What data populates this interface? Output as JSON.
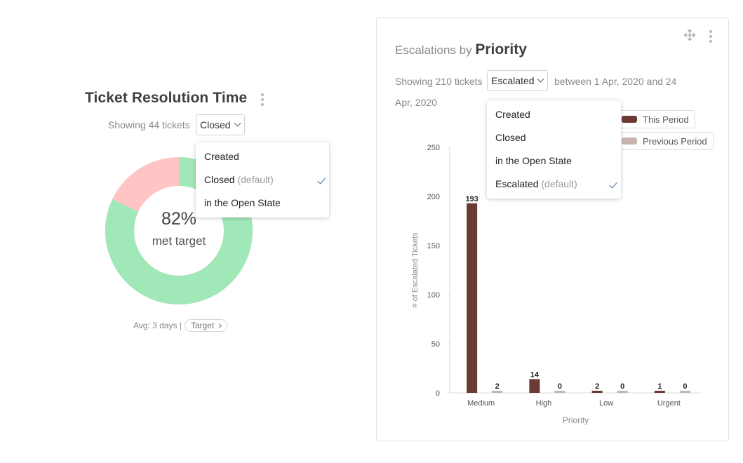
{
  "left": {
    "title": "Ticket Resolution Time",
    "showing": "Showing 44 tickets",
    "select_value": "Closed",
    "dropdown": [
      {
        "label": "Created",
        "default_tag": "",
        "selected": false
      },
      {
        "label": "Closed",
        "default_tag": "(default)",
        "selected": true
      },
      {
        "label": "in the Open State",
        "default_tag": "",
        "selected": false
      }
    ],
    "donut": {
      "percent_label": "82%",
      "caption": "met target",
      "met_fraction": 0.82,
      "met_color": "#a0e8b8",
      "missed_color": "#ffc4c4"
    },
    "avg_text": "Avg: 3 days |",
    "target_label": "Target"
  },
  "right": {
    "title_prefix": "Escalations by",
    "title_bold": "Priority",
    "showing": "Showing 210 tickets",
    "select_value": "Escalated",
    "between_line1": "between 1 Apr, 2020 and 24",
    "between_line2": "Apr, 2020",
    "dropdown": [
      {
        "label": "Created",
        "default_tag": "",
        "selected": false
      },
      {
        "label": "Closed",
        "default_tag": "",
        "selected": false
      },
      {
        "label": "in the Open State",
        "default_tag": "",
        "selected": false
      },
      {
        "label": "Escalated",
        "default_tag": "(default)",
        "selected": true
      }
    ],
    "legend": [
      {
        "label": "This Period",
        "color": "#6b3a32"
      },
      {
        "label": "Previous Period",
        "color": "#c9b3ad"
      }
    ]
  },
  "chart_data": {
    "type": "bar",
    "categories": [
      "Medium",
      "High",
      "Low",
      "Urgent"
    ],
    "series": [
      {
        "name": "This Period",
        "values": [
          193,
          14,
          2,
          1
        ],
        "color": "#6b3a32"
      },
      {
        "name": "Previous Period",
        "values": [
          2,
          0,
          0,
          0
        ],
        "color": "#c9b3ad"
      }
    ],
    "xlabel": "Priority",
    "ylabel": "# of Escalated Tickets",
    "ylim": [
      0,
      250
    ],
    "yticks": [
      0,
      50,
      100,
      150,
      200,
      250
    ],
    "legend_position": "top-right"
  }
}
